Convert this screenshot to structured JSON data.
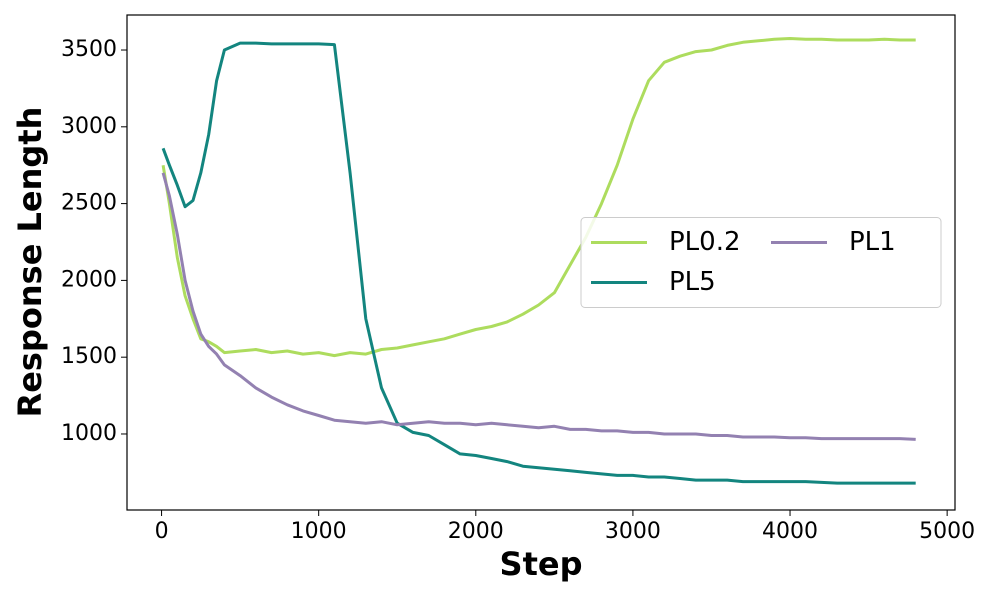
{
  "chart_data": {
    "type": "line",
    "xlabel": "Step",
    "ylabel": "Response Length",
    "x": [
      10,
      50,
      100,
      150,
      200,
      250,
      300,
      350,
      400,
      500,
      600,
      700,
      800,
      900,
      1000,
      1100,
      1200,
      1300,
      1400,
      1500,
      1600,
      1700,
      1800,
      1900,
      2000,
      2100,
      2200,
      2300,
      2400,
      2500,
      2600,
      2700,
      2800,
      2900,
      3000,
      3100,
      3200,
      3300,
      3400,
      3500,
      3600,
      3700,
      3800,
      3900,
      4000,
      4100,
      4200,
      4300,
      4400,
      4500,
      4600,
      4700,
      4800
    ],
    "series": [
      {
        "name": "PL0.2",
        "color": "#addc5e",
        "values": [
          2750,
          2500,
          2150,
          1900,
          1750,
          1620,
          1600,
          1570,
          1530,
          1540,
          1550,
          1530,
          1540,
          1520,
          1530,
          1510,
          1530,
          1520,
          1550,
          1560,
          1580,
          1600,
          1620,
          1650,
          1680,
          1700,
          1730,
          1780,
          1840,
          1920,
          2100,
          2280,
          2500,
          2750,
          3050,
          3300,
          3420,
          3460,
          3490,
          3500,
          3530,
          3550,
          3560,
          3570,
          3575,
          3570,
          3570,
          3565,
          3565,
          3565,
          3570,
          3565,
          3565
        ]
      },
      {
        "name": "PL5",
        "color": "#13857f",
        "values": [
          2860,
          2750,
          2620,
          2480,
          2520,
          2700,
          2950,
          3300,
          3500,
          3545,
          3545,
          3540,
          3540,
          3540,
          3540,
          3535,
          2700,
          1750,
          1300,
          1070,
          1010,
          990,
          930,
          870,
          860,
          840,
          820,
          790,
          780,
          770,
          760,
          750,
          740,
          730,
          730,
          720,
          720,
          710,
          700,
          700,
          700,
          690,
          690,
          690,
          690,
          690,
          685,
          680,
          680,
          680,
          680,
          680,
          680
        ]
      },
      {
        "name": "PL1",
        "color": "#9381b1",
        "values": [
          2700,
          2550,
          2300,
          2000,
          1800,
          1650,
          1570,
          1520,
          1450,
          1380,
          1300,
          1240,
          1190,
          1150,
          1120,
          1090,
          1080,
          1070,
          1080,
          1060,
          1070,
          1080,
          1070,
          1070,
          1060,
          1070,
          1060,
          1050,
          1040,
          1050,
          1030,
          1030,
          1020,
          1020,
          1010,
          1010,
          1000,
          1000,
          1000,
          990,
          990,
          980,
          980,
          980,
          975,
          975,
          970,
          970,
          970,
          970,
          970,
          970,
          965
        ]
      }
    ],
    "xlim": [
      -220,
      5050
    ],
    "xticks": [
      0,
      1000,
      2000,
      3000,
      4000,
      5000
    ],
    "ylim": [
      505,
      3728
    ],
    "yticks": [
      1000,
      1500,
      2000,
      2500,
      3000,
      3500
    ],
    "legend": "center right",
    "legend_columns": 2
  }
}
